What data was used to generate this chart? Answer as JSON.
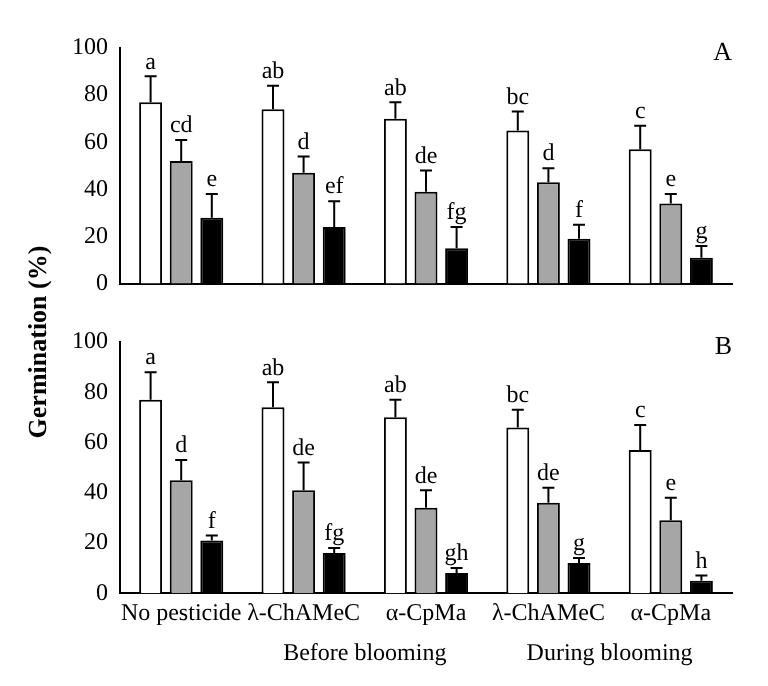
{
  "chart_data": [
    {
      "type": "bar",
      "title": "A",
      "ylabel": "Germination (%)",
      "categories": [
        null,
        null,
        null,
        null,
        null
      ],
      "ylim": [
        0,
        100
      ],
      "yticks": [
        0,
        20,
        40,
        60,
        80,
        100
      ],
      "tick_labels": "y",
      "series": [
        {
          "color": "#ffffff",
          "values": [
            77,
            74,
            70,
            65,
            57
          ],
          "errors": [
            [
              77,
              88
            ],
            [
              74,
              84
            ],
            [
              70,
              77
            ],
            [
              65,
              73
            ],
            [
              57,
              67
            ]
          ],
          "value_labels": [
            "a",
            "ab",
            "ab",
            "bc",
            "c"
          ]
        },
        {
          "color": "#a6a6a6",
          "values": [
            52,
            47,
            39,
            43,
            34
          ],
          "errors": [
            [
              52,
              61
            ],
            [
              47,
              54
            ],
            [
              39,
              48
            ],
            [
              43,
              49
            ],
            [
              34,
              38
            ]
          ],
          "value_labels": [
            "cd",
            "d",
            "de",
            "d",
            "e"
          ]
        },
        {
          "color": "#000000",
          "values": [
            28,
            24,
            15,
            19,
            11
          ],
          "errors": [
            [
              28,
              38
            ],
            [
              24,
              35
            ],
            [
              15,
              24
            ],
            [
              19,
              25
            ],
            [
              11,
              16
            ]
          ],
          "value_labels": [
            "e",
            "ef",
            "fg",
            "f",
            "g"
          ]
        }
      ]
    },
    {
      "type": "bar",
      "title": "B",
      "categories": [
        "No pesticide",
        "λ-ChAMeC",
        "α-CpMa",
        "λ-ChAMeC",
        "α-CpMa"
      ],
      "ylim": [
        0,
        100
      ],
      "yticks": [
        0,
        20,
        40,
        60,
        80,
        100
      ],
      "annotations": [
        "Before blooming",
        "During blooming"
      ],
      "series": [
        {
          "color": "#ffffff",
          "values": [
            77,
            74,
            70,
            66,
            57
          ],
          "errors": [
            [
              77,
              88
            ],
            [
              74,
              84
            ],
            [
              70,
              77
            ],
            [
              66,
              73
            ],
            [
              57,
              67
            ]
          ],
          "value_labels": [
            "a",
            "ab",
            "ab",
            "bc",
            "c"
          ]
        },
        {
          "color": "#a6a6a6",
          "values": [
            45,
            41,
            34,
            36,
            29
          ],
          "errors": [
            [
              45,
              53
            ],
            [
              41,
              52
            ],
            [
              34,
              41
            ],
            [
              36,
              42
            ],
            [
              29,
              38
            ]
          ],
          "value_labels": [
            "d",
            "de",
            "de",
            "de",
            "e"
          ]
        },
        {
          "color": "#000000",
          "values": [
            21,
            16,
            8,
            12,
            5
          ],
          "errors": [
            [
              21,
              23
            ],
            [
              16,
              18
            ],
            [
              8,
              10
            ],
            [
              12,
              14
            ],
            [
              5,
              7
            ]
          ],
          "value_labels": [
            "f",
            "fg",
            "gh",
            "g",
            "h"
          ]
        }
      ]
    }
  ]
}
